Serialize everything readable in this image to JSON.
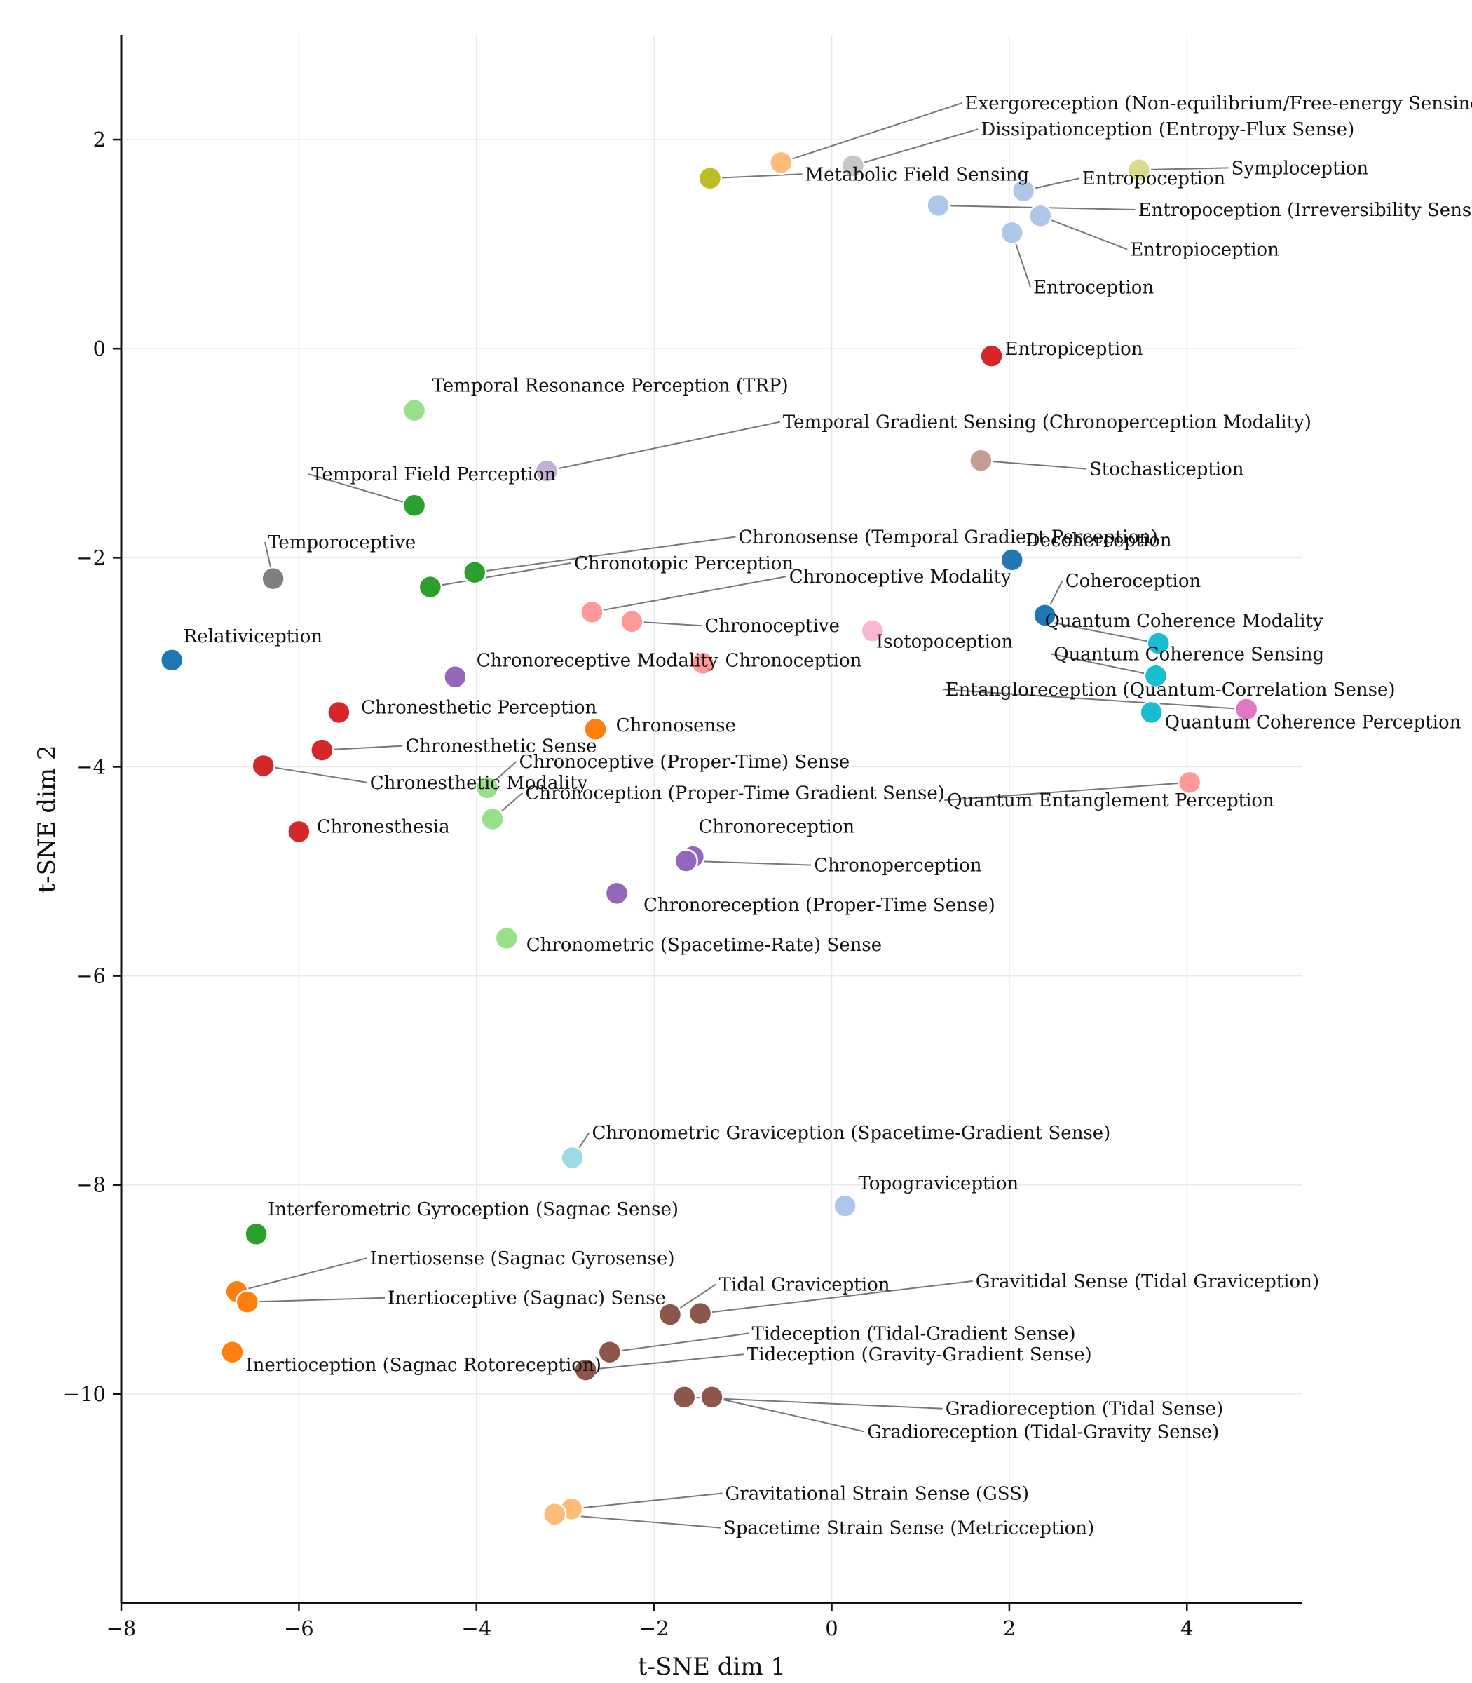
{
  "chart_data": {
    "type": "scatter",
    "title": "",
    "xlabel": "t-SNE dim 1",
    "ylabel": "t-SNE dim 2",
    "xlim": [
      -8,
      5.3
    ],
    "ylim": [
      -12,
      3
    ],
    "xticks": [
      -8,
      -6,
      -4,
      -2,
      0,
      2,
      4
    ],
    "yticks": [
      -10,
      -8,
      -6,
      -4,
      -2,
      0,
      2
    ],
    "grid": true,
    "points": [
      {
        "label": "Exergoreception (Non-equilibrium/Free-energy Sensing)",
        "x": -0.57,
        "y": 1.78,
        "lx": 1.5,
        "ly": 2.35,
        "color": "#ffbb78"
      },
      {
        "label": "Dissipationception (Entropy-Flux Sense)",
        "x": 0.24,
        "y": 1.75,
        "lx": 1.68,
        "ly": 2.1,
        "color": "#c7c7c7"
      },
      {
        "label": "Metabolic Field Sensing",
        "x": -1.37,
        "y": 1.63,
        "lx": -0.3,
        "ly": 1.67,
        "color": "#bcbd22"
      },
      {
        "label": "Symploception",
        "x": 3.46,
        "y": 1.71,
        "lx": 4.5,
        "ly": 1.73,
        "color": "#dbdb8d"
      },
      {
        "label": "Entropoception",
        "x": 2.16,
        "y": 1.51,
        "lx": 2.82,
        "ly": 1.63,
        "color": "#aec7e8"
      },
      {
        "label": "Entropoception (Irreversibility Sense)",
        "x": 1.2,
        "y": 1.37,
        "lx": 3.45,
        "ly": 1.33,
        "color": "#aec7e8"
      },
      {
        "label": "Entropioception",
        "x": 2.35,
        "y": 1.27,
        "lx": 3.36,
        "ly": 0.95,
        "color": "#aec7e8"
      },
      {
        "label": "Entroception",
        "x": 2.03,
        "y": 1.11,
        "lx": 2.27,
        "ly": 0.59,
        "color": "#aec7e8"
      },
      {
        "label": "Entropiception",
        "x": 1.8,
        "y": -0.07,
        "lx": 1.95,
        "ly": 0.0,
        "color": "#d62728"
      },
      {
        "label": "Temporal Resonance Perception (TRP)",
        "x": -4.7,
        "y": -0.59,
        "lx": -4.5,
        "ly": -0.35,
        "color": "#98df8a"
      },
      {
        "label": "Temporal Gradient Sensing (Chronoperception Modality)",
        "x": -3.21,
        "y": -1.17,
        "lx": -0.55,
        "ly": -0.7,
        "color": "#c5b0d5"
      },
      {
        "label": "Stochastiception",
        "x": 1.68,
        "y": -1.07,
        "lx": 2.9,
        "ly": -1.15,
        "color": "#c49c94"
      },
      {
        "label": "Temporal Field Perception",
        "x": -4.7,
        "y": -1.5,
        "lx": -5.86,
        "ly": -1.2,
        "color": "#2ca02c"
      },
      {
        "label": "Temporoceptive",
        "x": -6.29,
        "y": -2.2,
        "lx": -6.35,
        "ly": -1.85,
        "color": "#7f7f7f"
      },
      {
        "label": "Chronosense (Temporal Gradient Perception)",
        "x": -4.02,
        "y": -2.14,
        "lx": -1.05,
        "ly": -1.8,
        "color": "#2ca02c"
      },
      {
        "label": "Chronotopic Perception",
        "x": -4.52,
        "y": -2.28,
        "lx": -2.9,
        "ly": -2.05,
        "color": "#2ca02c"
      },
      {
        "label": "Decoherception",
        "x": 2.03,
        "y": -2.02,
        "lx": 2.18,
        "ly": -1.83,
        "color": "#1f77b4"
      },
      {
        "label": "Chronoceptive Modality",
        "x": -2.7,
        "y": -2.52,
        "lx": -0.48,
        "ly": -2.18,
        "color": "#ff9896"
      },
      {
        "label": "Coheroception",
        "x": 2.4,
        "y": -2.55,
        "lx": 2.63,
        "ly": -2.22,
        "color": "#1f77b4"
      },
      {
        "label": "Chronoceptive",
        "x": -2.25,
        "y": -2.61,
        "lx": -1.43,
        "ly": -2.65,
        "color": "#ff9896"
      },
      {
        "label": "Isotopoception",
        "x": 0.46,
        "y": -2.7,
        "lx": 0.5,
        "ly": -2.8,
        "color": "#f7b6d2"
      },
      {
        "label": "Quantum Coherence Modality",
        "x": 3.68,
        "y": -2.82,
        "lx": 2.4,
        "ly": -2.6,
        "color": "#17becf"
      },
      {
        "label": "Relativiception",
        "x": -7.43,
        "y": -2.98,
        "lx": -7.3,
        "ly": -2.75,
        "color": "#1f77b4"
      },
      {
        "label": "Quantum Coherence Sensing",
        "x": 3.65,
        "y": -3.13,
        "lx": 2.5,
        "ly": -2.92,
        "color": "#17becf"
      },
      {
        "label": "Chronoception",
        "x": -1.45,
        "y": -3.01,
        "lx": -1.2,
        "ly": -2.98,
        "color": "#ff9896"
      },
      {
        "label": "Chronoreceptive Modality",
        "x": -4.24,
        "y": -3.14,
        "lx": -4.0,
        "ly": -2.98,
        "color": "#9467bd"
      },
      {
        "label": "Entangloreception (Quantum-Correlation Sense)",
        "x": 4.67,
        "y": -3.45,
        "lx": 1.28,
        "ly": -3.26,
        "color": "#e377c2"
      },
      {
        "label": "Chronesthetic Perception",
        "x": -5.55,
        "y": -3.48,
        "lx": -5.3,
        "ly": -3.43,
        "color": "#d62728"
      },
      {
        "label": "Quantum Coherence Perception",
        "x": 3.6,
        "y": -3.48,
        "lx": 3.75,
        "ly": -3.57,
        "color": "#17becf"
      },
      {
        "label": "Chronosense",
        "x": -2.66,
        "y": -3.64,
        "lx": -2.43,
        "ly": -3.6,
        "color": "#ff7f0e"
      },
      {
        "label": "Chronesthetic Sense",
        "x": -5.74,
        "y": -3.84,
        "lx": -4.8,
        "ly": -3.8,
        "color": "#d62728"
      },
      {
        "label": "Chronoceptive (Proper-Time) Sense",
        "x": -3.88,
        "y": -4.2,
        "lx": -3.52,
        "ly": -3.95,
        "color": "#98df8a"
      },
      {
        "label": "Chronesthetic Modality",
        "x": -6.4,
        "y": -3.99,
        "lx": -5.2,
        "ly": -4.15,
        "color": "#d62728"
      },
      {
        "label": "Quantum Entanglement Perception",
        "x": 4.03,
        "y": -4.15,
        "lx": 1.3,
        "ly": -4.32,
        "color": "#ff9896"
      },
      {
        "label": "Chronoception (Proper-Time Gradient Sense)",
        "x": -3.82,
        "y": -4.5,
        "lx": -3.45,
        "ly": -4.25,
        "color": "#98df8a"
      },
      {
        "label": "Chronoreception",
        "x": -1.56,
        "y": -4.86,
        "lx": -1.5,
        "ly": -4.57,
        "color": "#9467bd"
      },
      {
        "label": "Chronesthesia",
        "x": -6.0,
        "y": -4.62,
        "lx": -5.8,
        "ly": -4.57,
        "color": "#d62728"
      },
      {
        "label": "Chronoperception",
        "x": -1.64,
        "y": -4.9,
        "lx": -0.2,
        "ly": -4.94,
        "color": "#9467bd"
      },
      {
        "label": "Chronoreception (Proper-Time Sense)",
        "x": -2.42,
        "y": -5.21,
        "lx": -2.12,
        "ly": -5.32,
        "color": "#9467bd"
      },
      {
        "label": "Chronometric (Spacetime-Rate) Sense",
        "x": -3.66,
        "y": -5.64,
        "lx": -3.44,
        "ly": -5.7,
        "color": "#98df8a"
      },
      {
        "label": "Chronometric Graviception (Spacetime-Gradient Sense)",
        "x": -2.92,
        "y": -7.74,
        "lx": -2.7,
        "ly": -7.5,
        "color": "#9edae5"
      },
      {
        "label": "Topograviception",
        "x": 0.15,
        "y": -8.2,
        "lx": 0.3,
        "ly": -7.98,
        "color": "#aec7e8"
      },
      {
        "label": "Interferometric Gyroception (Sagnac Sense)",
        "x": -6.48,
        "y": -8.47,
        "lx": -6.35,
        "ly": -8.23,
        "color": "#2ca02c"
      },
      {
        "label": "Inertiosense (Sagnac Gyrosense)",
        "x": -6.7,
        "y": -9.02,
        "lx": -5.2,
        "ly": -8.7,
        "color": "#ff7f0e"
      },
      {
        "label": "Inertioceptive (Sagnac) Sense",
        "x": -6.58,
        "y": -9.12,
        "lx": -5.0,
        "ly": -9.08,
        "color": "#ff7f0e"
      },
      {
        "label": "Tidal Graviception",
        "x": -1.82,
        "y": -9.24,
        "lx": -1.27,
        "ly": -8.95,
        "color": "#8c564b"
      },
      {
        "label": "Gravitidal Sense (Tidal Graviception)",
        "x": -1.48,
        "y": -9.23,
        "lx": 1.62,
        "ly": -8.92,
        "color": "#8c564b"
      },
      {
        "label": "Tideception (Tidal-Gradient Sense)",
        "x": -2.5,
        "y": -9.6,
        "lx": -0.9,
        "ly": -9.42,
        "color": "#8c564b"
      },
      {
        "label": "Inertioception (Sagnac Rotoreception)",
        "x": -6.75,
        "y": -9.6,
        "lx": -6.6,
        "ly": -9.72,
        "color": "#ff7f0e"
      },
      {
        "label": "Tideception (Gravity-Gradient Sense)",
        "x": -2.77,
        "y": -9.77,
        "lx": -0.96,
        "ly": -9.62,
        "color": "#8c564b"
      },
      {
        "label": "Gradioreception (Tidal Sense)",
        "x": -1.66,
        "y": -10.03,
        "lx": 1.28,
        "ly": -10.14,
        "color": "#8c564b"
      },
      {
        "label": "Gradioreception (Tidal-Gravity Sense)",
        "x": -1.35,
        "y": -10.03,
        "lx": 0.4,
        "ly": -10.36,
        "color": "#8c564b"
      },
      {
        "label": "Gravitational Strain Sense (GSS)",
        "x": -2.93,
        "y": -11.1,
        "lx": -1.2,
        "ly": -10.95,
        "color": "#ffbb78"
      },
      {
        "label": "Spacetime Strain Sense (Metricception)",
        "x": -3.12,
        "y": -11.15,
        "lx": -1.22,
        "ly": -11.28,
        "color": "#ffbb78"
      }
    ]
  }
}
